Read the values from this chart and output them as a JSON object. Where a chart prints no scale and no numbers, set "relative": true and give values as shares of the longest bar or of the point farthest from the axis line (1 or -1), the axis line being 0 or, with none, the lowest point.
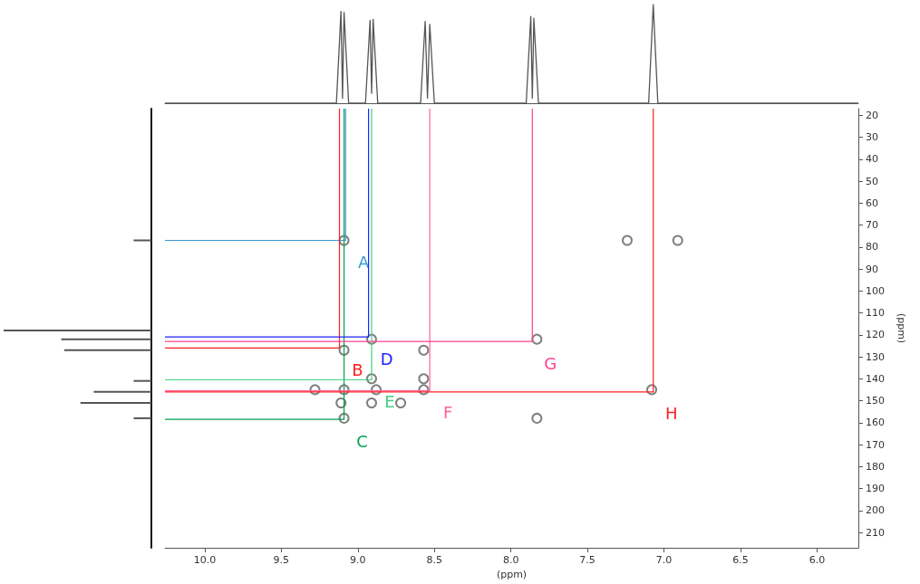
{
  "chart_data": [
    {
      "type": "line",
      "relative": true,
      "xlim": [
        10.26,
        5.73
      ],
      "series": [
        {
          "color": "#555555",
          "x": [
            10.26,
            9.14,
            9.11,
            9.1,
            9.09,
            9.06,
            8.95,
            8.92,
            8.91,
            8.9,
            8.87,
            8.59,
            8.56,
            8.545,
            8.53,
            8.5,
            7.9,
            7.87,
            7.86,
            7.85,
            7.82,
            7.1,
            7.07,
            7.04,
            5.73
          ],
          "values": [
            0,
            0,
            0.93,
            0.05,
            0.92,
            0,
            0,
            0.84,
            0.1,
            0.85,
            0,
            0,
            0.83,
            0.05,
            0.8,
            0,
            0,
            0.88,
            0.05,
            0.86,
            0,
            0,
            1,
            0,
            0
          ]
        }
      ]
    },
    {
      "type": "bar",
      "orientation": "horizontal",
      "relative": true,
      "ylim": [
        217,
        17
      ],
      "x": [
        77,
        118,
        122,
        127,
        141,
        146,
        151,
        158
      ],
      "values": [
        0.12,
        1,
        0.61,
        0.59,
        0.12,
        0.39,
        0.48,
        0.12
      ],
      "color": "#555555"
    },
    {
      "type": "scatter",
      "xlabel": "(ppm)",
      "ylabel": "(ppm)",
      "xlim": [
        10.26,
        5.73
      ],
      "ylim": [
        217,
        17
      ],
      "xticks": [
        {
          "value": 10,
          "label": "10.0"
        },
        {
          "value": 9.5,
          "label": "9.5"
        },
        {
          "value": 9,
          "label": "9.0"
        },
        {
          "value": 8.5,
          "label": "8.5"
        },
        {
          "value": 8,
          "label": "8.0"
        },
        {
          "value": 7.5,
          "label": "7.5"
        },
        {
          "value": 7,
          "label": "7.0"
        },
        {
          "value": 6.5,
          "label": "6.5"
        },
        {
          "value": 6,
          "label": "6.0"
        }
      ],
      "yticks": [
        20,
        30,
        40,
        50,
        60,
        70,
        80,
        90,
        100,
        110,
        120,
        130,
        140,
        150,
        160,
        170,
        180,
        190,
        200,
        210
      ],
      "grid": false,
      "annotations": [
        "A",
        "B",
        "C",
        "D",
        "E",
        "F",
        "G",
        "H"
      ],
      "series": [
        {
          "type": "scatter",
          "marker": "circle",
          "color": "#606060",
          "x": [
            9.09,
            7.24,
            6.91,
            8.91,
            7.83,
            9.09,
            8.57,
            8.91,
            8.57,
            9.09,
            8.57,
            7.08,
            9.28,
            8.88,
            8.91,
            9.11,
            8.72,
            7.83,
            9.09
          ],
          "values": [
            77,
            77,
            77,
            122,
            122,
            127,
            127,
            140,
            140,
            145,
            145,
            145,
            145,
            145,
            151,
            151,
            151,
            158,
            158
          ]
        },
        {
          "type": "line",
          "color": "#3a9ad9",
          "x": [
            9.08,
            9.08,
            10.26
          ],
          "values": [
            17,
            77,
            77
          ]
        },
        {
          "type": "line",
          "color": "#ff2020",
          "x": [
            9.12,
            9.12,
            10.26
          ],
          "values": [
            17,
            126,
            126
          ]
        },
        {
          "type": "line",
          "color": "#00a050",
          "x": [
            9.09,
            9.09,
            10.26
          ],
          "values": [
            17,
            158.5,
            158.5
          ]
        },
        {
          "type": "line",
          "color": "#2020ff",
          "x": [
            8.93,
            8.93,
            10.26
          ],
          "values": [
            17,
            121,
            121
          ]
        },
        {
          "type": "line",
          "color": "#40d080",
          "x": [
            8.91,
            8.91,
            10.26
          ],
          "values": [
            17,
            140.5,
            140.5
          ]
        },
        {
          "type": "line",
          "color": "#ff60a0",
          "x": [
            8.53,
            8.53,
            10.26
          ],
          "values": [
            17,
            145.5,
            145.5
          ]
        },
        {
          "type": "line",
          "color": "#ff4090",
          "x": [
            7.86,
            7.86,
            10.26
          ],
          "values": [
            17,
            123,
            123
          ]
        },
        {
          "type": "line",
          "color": "#ff2020",
          "x": [
            7.07,
            7.07,
            10.26
          ],
          "values": [
            17,
            146,
            146
          ]
        }
      ]
    }
  ]
}
